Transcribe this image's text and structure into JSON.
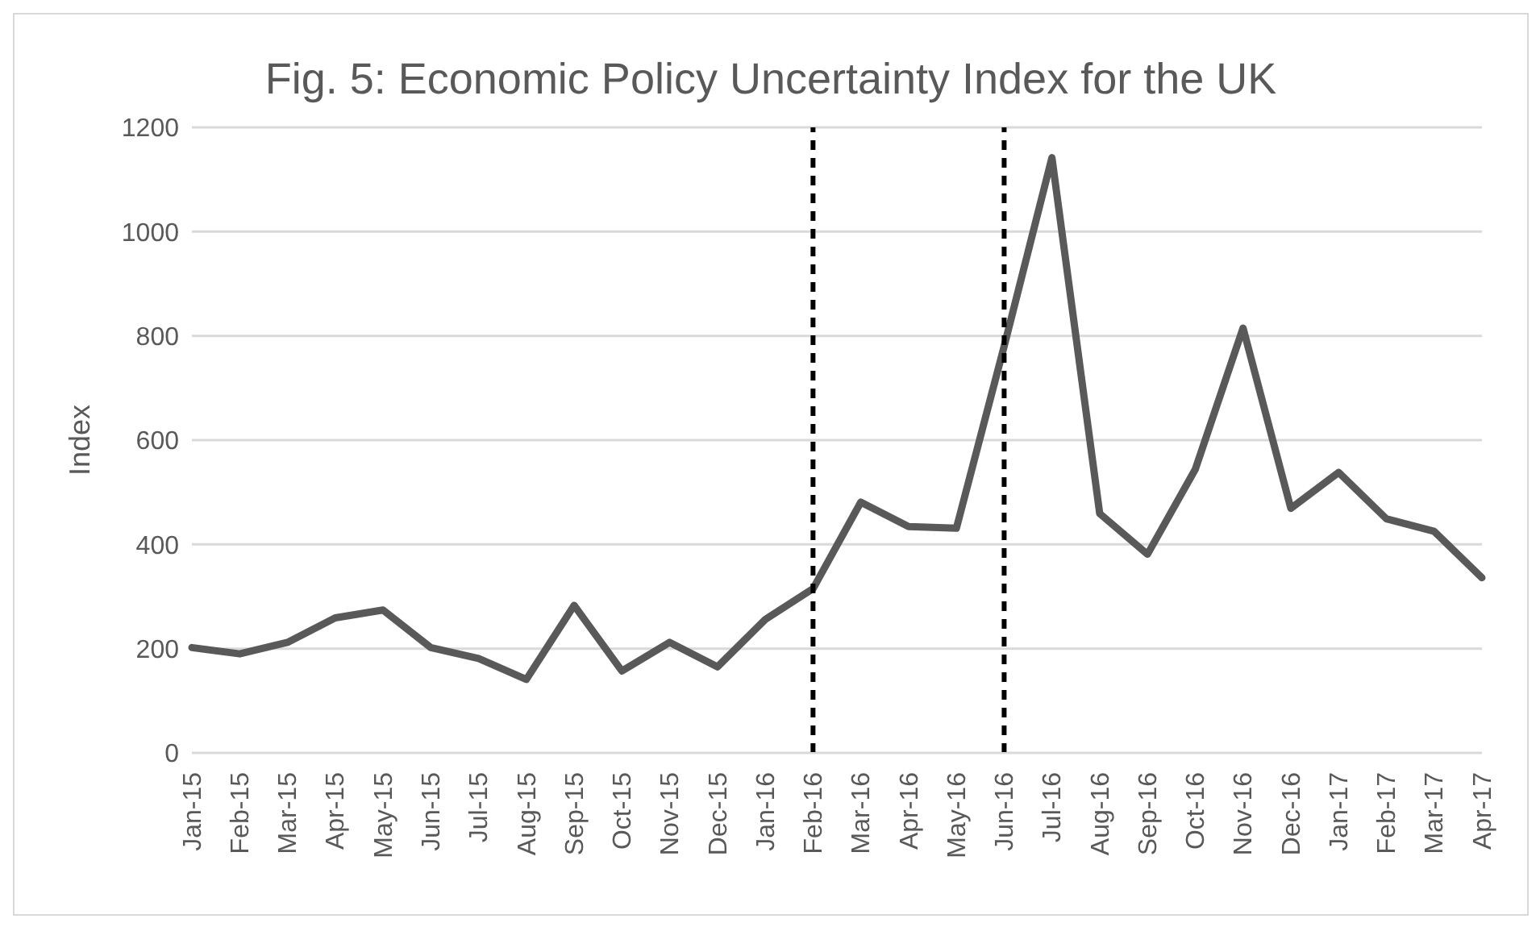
{
  "chart_data": {
    "type": "line",
    "title": "Fig. 5: Economic Policy Uncertainty Index for the UK",
    "ylabel": "Index",
    "categories": [
      "Jan-15",
      "Feb-15",
      "Mar-15",
      "Apr-15",
      "May-15",
      "Jun-15",
      "Jul-15",
      "Aug-15",
      "Sep-15",
      "Oct-15",
      "Nov-15",
      "Dec-15",
      "Jan-16",
      "Feb-16",
      "Mar-16",
      "Apr-16",
      "May-16",
      "Jun-16",
      "Jul-16",
      "Aug-16",
      "Sep-16",
      "Oct-16",
      "Nov-16",
      "Dec-16",
      "Jan-17",
      "Feb-17",
      "Mar-17",
      "Apr-17"
    ],
    "series": [
      {
        "color": "#595959",
        "values": [
          202,
          190,
          212,
          259,
          274,
          202,
          181,
          141,
          283,
          157,
          212,
          165,
          256,
          315,
          481,
          434,
          431,
          780,
          1142,
          459,
          381,
          544,
          815,
          469,
          538,
          449,
          425,
          336
        ]
      }
    ],
    "ylim": [
      0,
      1200
    ],
    "yticks": [
      0,
      200,
      400,
      600,
      800,
      1000,
      1200
    ],
    "grid": "y",
    "marker": "none",
    "line_style": "solid",
    "ref_lines": [
      {
        "axis": "x",
        "value": "Feb-16",
        "color": "#000000",
        "line_style": "dashed"
      },
      {
        "axis": "x",
        "value": "Jun-16",
        "color": "#000000",
        "line_style": "dashed"
      }
    ]
  }
}
